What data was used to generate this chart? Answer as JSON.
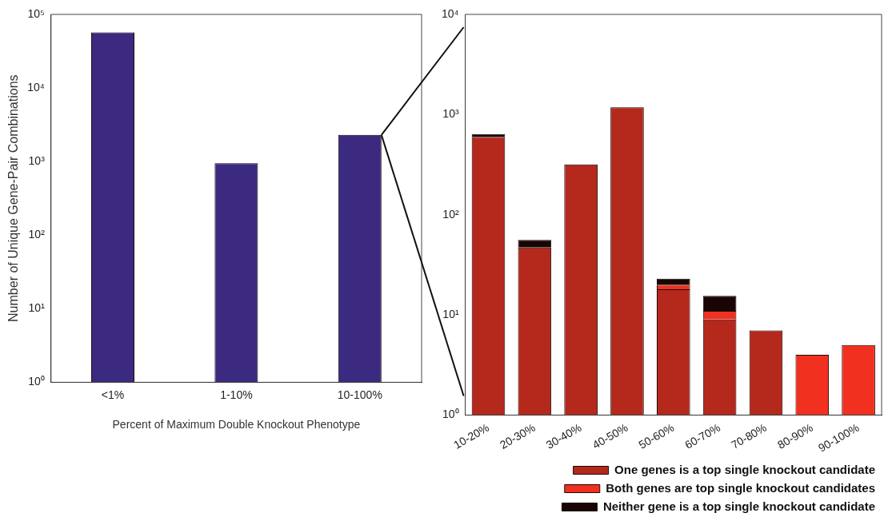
{
  "chart_data": [
    {
      "type": "bar",
      "xlabel": "Percent of Maximum Double Knockout Phenotype",
      "ylabel": "Number of Unique Gene-Pair Combinations",
      "categories": [
        "<1%",
        "1-10%",
        "10-100%"
      ],
      "values": [
        57000,
        950,
        2300
      ],
      "color": "#3b2a80",
      "log": true,
      "ylim": [
        1,
        100000
      ],
      "yticks": [
        {
          "value": 1,
          "label": "10⁰"
        },
        {
          "value": 10,
          "label": "10¹"
        },
        {
          "value": 100,
          "label": "10²"
        },
        {
          "value": 1000,
          "label": "10³"
        },
        {
          "value": 10000,
          "label": "10⁴"
        },
        {
          "value": 100000,
          "label": "10⁵"
        }
      ],
      "grid": false,
      "legend": false
    },
    {
      "type": "bar",
      "stacked": true,
      "categories": [
        "10-20%",
        "20-30%",
        "30-40%",
        "40-50%",
        "50-60%",
        "60-70%",
        "70-80%",
        "80-90%",
        "90-100%"
      ],
      "series": [
        {
          "name": "One genes is a top single knockout candidate",
          "color": "#b5281c",
          "values": [
            600,
            47,
            318,
            1180,
            18,
            9,
            7,
            null,
            null
          ]
        },
        {
          "name": "Both genes are top single knockout candidates",
          "color": "#f2301f",
          "values": [
            null,
            null,
            null,
            null,
            2,
            2,
            null,
            4,
            5
          ]
        },
        {
          "name": "Neither gene is a top single knockout candidate",
          "color": "#1a0505",
          "values": [
            40,
            9,
            null,
            null,
            3,
            4.5,
            null,
            null,
            null
          ]
        }
      ],
      "log": true,
      "ylim": [
        1,
        10000
      ],
      "yticks": [
        {
          "value": 1,
          "label": "10⁰"
        },
        {
          "value": 10,
          "label": "10¹"
        },
        {
          "value": 100,
          "label": "10²"
        },
        {
          "value": 1000,
          "label": "10³"
        },
        {
          "value": 10000,
          "label": "10⁴"
        }
      ],
      "grid": false,
      "legend": "bottom right"
    }
  ]
}
